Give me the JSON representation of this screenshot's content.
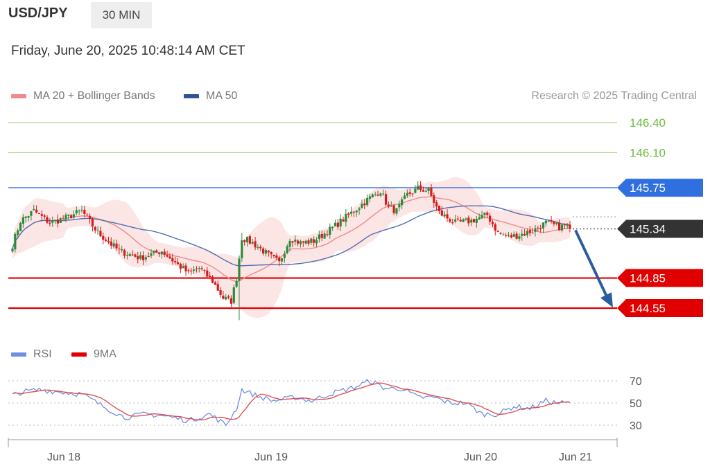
{
  "header": {
    "symbol": "USD/JPY",
    "timeframe": "30 MIN"
  },
  "datetime": "Friday, June 20, 2025 10:48:14 AM CET",
  "legend": {
    "ma20_label": "MA 20 + Bollinger Bands",
    "ma50_label": "MA 50",
    "rsi_label": "RSI",
    "ma9_label": "9MA"
  },
  "credit": "Research © 2025 Trading Central",
  "colors": {
    "target": "#6dbb3f",
    "pivot": "#2f6fe0",
    "support": "#e00000",
    "last": "#333333",
    "ma20": "#f08a8a",
    "band": "#fbdcdc",
    "ma50": "#4b6fb0",
    "up": "#2c8a3a",
    "down": "#d91a1a",
    "rsi": "#6f8fe0",
    "rsi_ma": "#e05050",
    "arrow": "#2b5c9e"
  },
  "chart_data": {
    "type": "candlestick",
    "price_range": [
      144.43,
      146.52
    ],
    "x_ticks": [
      "Jun 18",
      "Jun 19",
      "Jun 20",
      "Jun 21"
    ],
    "levels": [
      {
        "value": 146.4,
        "label": "146.40",
        "kind": "target"
      },
      {
        "value": 146.1,
        "label": "146.10",
        "kind": "target"
      },
      {
        "value": 145.75,
        "label": "145.75",
        "kind": "pivot"
      },
      {
        "value": 145.34,
        "label": "145.34",
        "kind": "last"
      },
      {
        "value": 144.85,
        "label": "144.85",
        "kind": "support"
      },
      {
        "value": 144.55,
        "label": "144.55",
        "kind": "support"
      }
    ],
    "close_anchors": [
      [
        0,
        145.18
      ],
      [
        3,
        145.42
      ],
      [
        8,
        145.52
      ],
      [
        14,
        145.4
      ],
      [
        20,
        145.45
      ],
      [
        26,
        145.52
      ],
      [
        32,
        145.3
      ],
      [
        40,
        145.12
      ],
      [
        48,
        145.05
      ],
      [
        56,
        145.12
      ],
      [
        62,
        144.98
      ],
      [
        66,
        144.9
      ],
      [
        70,
        144.95
      ],
      [
        75,
        144.82
      ],
      [
        79,
        144.65
      ],
      [
        82,
        144.62
      ],
      [
        84,
        144.85
      ],
      [
        86,
        145.25
      ],
      [
        90,
        145.2
      ],
      [
        96,
        145.08
      ],
      [
        100,
        145.0
      ],
      [
        104,
        145.25
      ],
      [
        108,
        145.2
      ],
      [
        113,
        145.22
      ],
      [
        120,
        145.35
      ],
      [
        128,
        145.52
      ],
      [
        134,
        145.65
      ],
      [
        138,
        145.72
      ],
      [
        141,
        145.55
      ],
      [
        144,
        145.52
      ],
      [
        148,
        145.68
      ],
      [
        152,
        145.74
      ],
      [
        156,
        145.72
      ],
      [
        160,
        145.5
      ],
      [
        166,
        145.4
      ],
      [
        172,
        145.42
      ],
      [
        178,
        145.48
      ],
      [
        182,
        145.3
      ],
      [
        186,
        145.26
      ],
      [
        190,
        145.28
      ],
      [
        195,
        145.32
      ],
      [
        200,
        145.4
      ],
      [
        205,
        145.36
      ],
      [
        209,
        145.38
      ]
    ],
    "rsi_range": [
      20,
      75
    ],
    "rsi_levels": [
      70,
      50,
      30
    ],
    "rsi_anchors": [
      [
        0,
        57
      ],
      [
        4,
        60
      ],
      [
        10,
        62
      ],
      [
        18,
        60
      ],
      [
        26,
        58
      ],
      [
        34,
        47
      ],
      [
        42,
        37
      ],
      [
        50,
        40
      ],
      [
        58,
        38
      ],
      [
        66,
        34
      ],
      [
        74,
        40
      ],
      [
        80,
        30
      ],
      [
        84,
        45
      ],
      [
        86,
        62
      ],
      [
        92,
        56
      ],
      [
        98,
        52
      ],
      [
        106,
        55
      ],
      [
        112,
        52
      ],
      [
        120,
        59
      ],
      [
        128,
        64
      ],
      [
        134,
        70
      ],
      [
        140,
        63
      ],
      [
        146,
        63
      ],
      [
        152,
        55
      ],
      [
        158,
        55
      ],
      [
        164,
        50
      ],
      [
        170,
        50
      ],
      [
        176,
        40
      ],
      [
        182,
        40
      ],
      [
        188,
        47
      ],
      [
        194,
        45
      ],
      [
        200,
        52
      ],
      [
        204,
        50
      ],
      [
        209,
        50
      ]
    ]
  }
}
